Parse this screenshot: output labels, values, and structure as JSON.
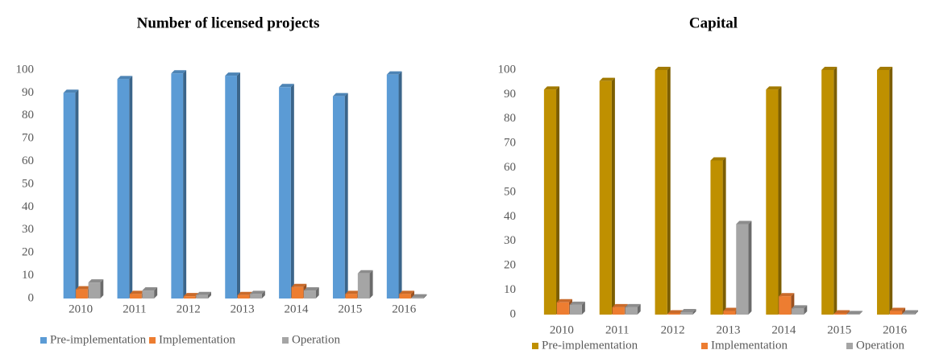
{
  "chart_data": [
    {
      "type": "bar",
      "title": "Number of licensed projects",
      "categories": [
        "2010",
        "2011",
        "2012",
        "2013",
        "2014",
        "2015",
        "2016"
      ],
      "series": [
        {
          "name": "Pre-implementation",
          "color": "#5b9bd5",
          "values": [
            90,
            96,
            98.5,
            97.5,
            92.5,
            88.5,
            98
          ]
        },
        {
          "name": "Implementation",
          "color": "#ed7d31",
          "values": [
            4,
            2,
            1,
            1.5,
            5,
            2,
            2
          ]
        },
        {
          "name": "Operation",
          "color": "#a5a5a5",
          "values": [
            7,
            3.5,
            1.5,
            2,
            3.5,
            11,
            0.5
          ]
        }
      ],
      "ylim": [
        0,
        100
      ],
      "yticks": [
        0,
        10,
        20,
        30,
        40,
        50,
        60,
        70,
        80,
        90,
        100
      ],
      "grid": false,
      "legend": "bottom"
    },
    {
      "type": "bar",
      "title": "Capital",
      "categories": [
        "2010",
        "2011",
        "2012",
        "2013",
        "2014",
        "2015",
        "2016"
      ],
      "series": [
        {
          "name": "Pre-implementation",
          "color": "#bf9000",
          "values": [
            92,
            95.5,
            100,
            63,
            92,
            100,
            100
          ]
        },
        {
          "name": "Implementation",
          "color": "#ed7d31",
          "values": [
            5,
            3,
            0.5,
            1.5,
            7.5,
            0.5,
            1.5
          ]
        },
        {
          "name": "Operation",
          "color": "#a5a5a5",
          "values": [
            4,
            3,
            1,
            37,
            2.5,
            0.2,
            0.5
          ]
        }
      ],
      "ylim": [
        0,
        100
      ],
      "yticks": [
        0,
        10,
        20,
        30,
        40,
        50,
        60,
        70,
        80,
        90,
        100
      ],
      "grid": false,
      "legend": "bottom"
    }
  ]
}
